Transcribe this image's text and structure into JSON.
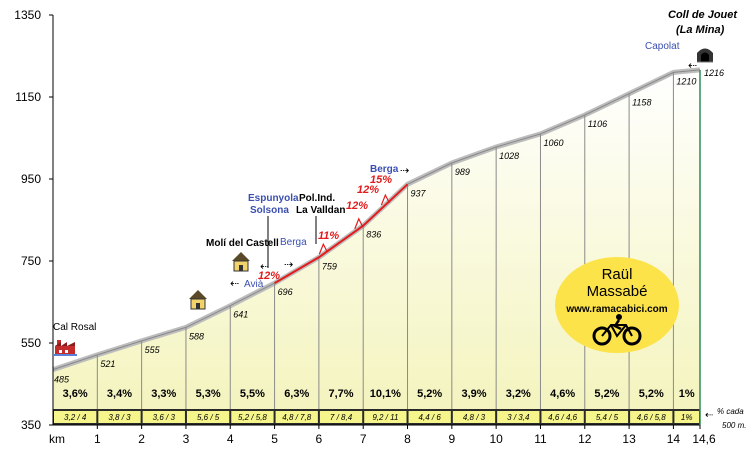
{
  "chart_data": {
    "type": "area",
    "title": "Coll de Jouet (La Mina)",
    "xlabel": "km",
    "ylabel": "",
    "xlim": [
      0,
      14.6
    ],
    "ylim": [
      350,
      1350
    ],
    "y_ticks": [
      "350",
      "550",
      "750",
      "950",
      "1150",
      "1350"
    ],
    "x_ticks": [
      "1",
      "2",
      "3",
      "4",
      "5",
      "6",
      "7",
      "8",
      "9",
      "10",
      "11",
      "12",
      "13",
      "14",
      "14,6"
    ],
    "km_label": "km",
    "profile": [
      {
        "km": 0,
        "elev": 485,
        "label": "485"
      },
      {
        "km": 1,
        "elev": 521,
        "label": "521"
      },
      {
        "km": 2,
        "elev": 555,
        "label": "555"
      },
      {
        "km": 3,
        "elev": 588,
        "label": "588"
      },
      {
        "km": 4,
        "elev": 641,
        "label": "641"
      },
      {
        "km": 5,
        "elev": 696,
        "label": "696"
      },
      {
        "km": 6,
        "elev": 759,
        "label": "759"
      },
      {
        "km": 7,
        "elev": 836,
        "label": "836"
      },
      {
        "km": 8,
        "elev": 937,
        "label": "937"
      },
      {
        "km": 9,
        "elev": 989,
        "label": "989"
      },
      {
        "km": 10,
        "elev": 1028,
        "label": "1028"
      },
      {
        "km": 11,
        "elev": 1060,
        "label": "1060"
      },
      {
        "km": 12,
        "elev": 1106,
        "label": "1106"
      },
      {
        "km": 13,
        "elev": 1158,
        "label": "1158"
      },
      {
        "km": 14,
        "elev": 1210,
        "label": "1210"
      },
      {
        "km": 14.6,
        "elev": 1216,
        "label": "1216"
      }
    ],
    "segments": [
      {
        "from": 0,
        "to": 1,
        "gradient": "3,6%",
        "per500": "3,2 / 4"
      },
      {
        "from": 1,
        "to": 2,
        "gradient": "3,4%",
        "per500": "3,8 / 3"
      },
      {
        "from": 2,
        "to": 3,
        "gradient": "3,3%",
        "per500": "3,6 / 3"
      },
      {
        "from": 3,
        "to": 4,
        "gradient": "5,3%",
        "per500": "5,6 / 5"
      },
      {
        "from": 4,
        "to": 5,
        "gradient": "5,5%",
        "per500": "5,2 / 5,8"
      },
      {
        "from": 5,
        "to": 6,
        "gradient": "6,3%",
        "per500": "4,8 / 7,8"
      },
      {
        "from": 6,
        "to": 7,
        "gradient": "7,7%",
        "per500": "7 / 8,4"
      },
      {
        "from": 7,
        "to": 8,
        "gradient": "10,1%",
        "per500": "9,2 / 11"
      },
      {
        "from": 8,
        "to": 9,
        "gradient": "5,2%",
        "per500": "4,4 / 6"
      },
      {
        "from": 9,
        "to": 10,
        "gradient": "3,9%",
        "per500": "4,8 / 3"
      },
      {
        "from": 10,
        "to": 11,
        "gradient": "3,2%",
        "per500": "3 / 3,4"
      },
      {
        "from": 11,
        "to": 12,
        "gradient": "4,6%",
        "per500": "4,6 / 4,6"
      },
      {
        "from": 12,
        "to": 13,
        "gradient": "5,2%",
        "per500": "5,4 / 5"
      },
      {
        "from": 13,
        "to": 14,
        "gradient": "5,2%",
        "per500": "4,6 / 5,8"
      },
      {
        "from": 14,
        "to": 14.6,
        "gradient": "1%",
        "per500": "1%"
      }
    ],
    "steep_ramps": [
      {
        "km": 5.0,
        "label": "12%"
      },
      {
        "km": 6.1,
        "label": "11%"
      },
      {
        "km": 6.9,
        "label": "12%"
      },
      {
        "km": 7.2,
        "label": "12%"
      },
      {
        "km": 7.5,
        "label": "15%"
      }
    ],
    "places": [
      {
        "km": 0.1,
        "text": "Cal Rosal",
        "style": "black"
      },
      {
        "km": 4.0,
        "text": "Molí del Castell",
        "style": "black-bold"
      },
      {
        "km": 4.6,
        "text": "Avià",
        "style": "blue"
      },
      {
        "km": 5.0,
        "text": "Espunyola",
        "style": "blue"
      },
      {
        "km": 5.0,
        "text": "Solsona",
        "style": "blue"
      },
      {
        "km": 5.5,
        "text": "Berga",
        "style": "blue"
      },
      {
        "km": 6.3,
        "text": "Pol.Ind.",
        "style": "black-bold"
      },
      {
        "km": 6.3,
        "text": "La Valldan",
        "style": "black-bold"
      },
      {
        "km": 7.9,
        "text": "Berga",
        "style": "blue"
      },
      {
        "km": 13.8,
        "text": "Capolat",
        "style": "blue"
      }
    ],
    "summit_name": [
      "Coll de Jouet",
      "(La Mina)"
    ],
    "brand": {
      "name_line1": "Raül",
      "name_line2": "Massabé",
      "url": "www.ramacabici.com"
    },
    "note": [
      "% cada",
      "500 m."
    ],
    "colors": {
      "fill": "#f7f7cc",
      "fill_top": "#ffffff",
      "ridge": "#bdbdbd",
      "divider": "#8a8a8a",
      "band": "#2a2a2a",
      "band_text": "#f5f58c",
      "steep": "#e21c1c",
      "summit_line": "#2e8b57",
      "blue_text": "#3a4fb0",
      "badge": "#fde34a"
    }
  }
}
